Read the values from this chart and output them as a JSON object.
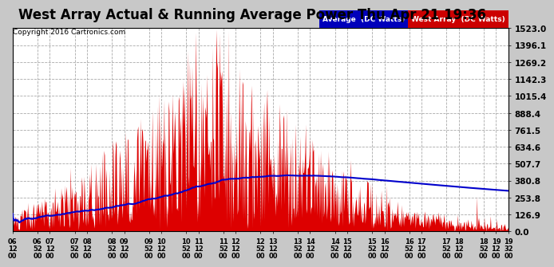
{
  "title": "West Array Actual & Running Average Power Thu Apr 21 19:36",
  "copyright": "Copyright 2016 Cartronics.com",
  "ytick_values": [
    0.0,
    126.9,
    253.8,
    380.8,
    507.7,
    634.6,
    761.5,
    888.4,
    1015.4,
    1142.3,
    1269.2,
    1396.1,
    1523.0
  ],
  "ymax": 1523.0,
  "ymin": 0.0,
  "fig_bg_color": "#c8c8c8",
  "plot_bg_color": "#ffffff",
  "grid_color": "#aaaaaa",
  "bar_color": "#dd0000",
  "avg_color": "#0000cc",
  "legend_avg_bg": "#0000bb",
  "legend_west_bg": "#cc0000",
  "x_tick_labels": [
    "06:12",
    "06:52",
    "07:12",
    "07:52",
    "08:12",
    "08:52",
    "09:12",
    "09:52",
    "10:12",
    "10:52",
    "11:12",
    "11:52",
    "12:12",
    "12:52",
    "13:12",
    "13:52",
    "14:12",
    "14:52",
    "15:12",
    "15:52",
    "16:12",
    "16:52",
    "17:12",
    "17:52",
    "18:12",
    "18:52",
    "19:12",
    "19:32"
  ],
  "title_fontsize": 12,
  "copyright_fontsize": 6.5,
  "tick_fontsize": 6,
  "ytick_fontsize": 7.5
}
